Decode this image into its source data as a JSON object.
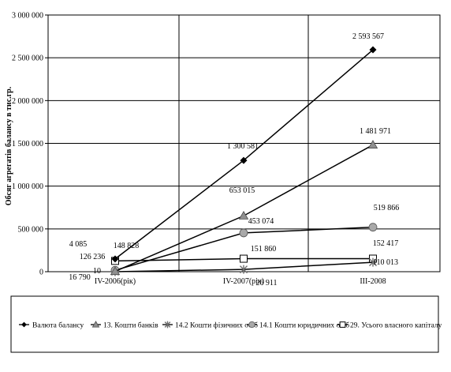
{
  "chart_data": {
    "type": "line",
    "title": "",
    "xlabel": "",
    "ylabel": "Обсяг агрегатів балансу в тис.гр.",
    "categories": [
      "IV-2006(рік)",
      "IV-2007(рік)",
      "III-2008"
    ],
    "ylim": [
      0,
      3000000
    ],
    "yticks": [
      0,
      500000,
      1000000,
      1500000,
      2000000,
      2500000,
      3000000
    ],
    "ytick_labels": [
      "0",
      "500 000",
      "1 000 000",
      "1 500 000",
      "2 000 000",
      "2 500 000",
      "3 000 000"
    ],
    "grid": "vertical and horizontal",
    "legend_position": "bottom",
    "series": [
      {
        "name": "Валюта балансу",
        "marker": "diamond",
        "values": [
          148828,
          1300581,
          2593567
        ],
        "labels": [
          "148 828",
          "1 300 581",
          "2 593 567"
        ]
      },
      {
        "name": "13. Кошти банків",
        "marker": "triangle",
        "values": [
          4085,
          653015,
          1481971
        ],
        "labels": [
          "4 085",
          "653 015",
          "1 481 971"
        ]
      },
      {
        "name": "14.2 Кошти фізичних осіб",
        "marker": "star",
        "values": [
          10,
          26911,
          110013
        ],
        "labels": [
          "10",
          "26 911",
          "110 013"
        ]
      },
      {
        "name": "14.1 Кошти юридичних осіб",
        "marker": "circle",
        "values": [
          16790,
          453074,
          519866
        ],
        "labels": [
          "16 790",
          "453 074",
          "519 866"
        ]
      },
      {
        "name": "29. Усього власного капіталу",
        "marker": "square",
        "values": [
          126236,
          151860,
          152417
        ],
        "labels": [
          "126 236",
          "151 860",
          "152 417"
        ]
      }
    ]
  }
}
